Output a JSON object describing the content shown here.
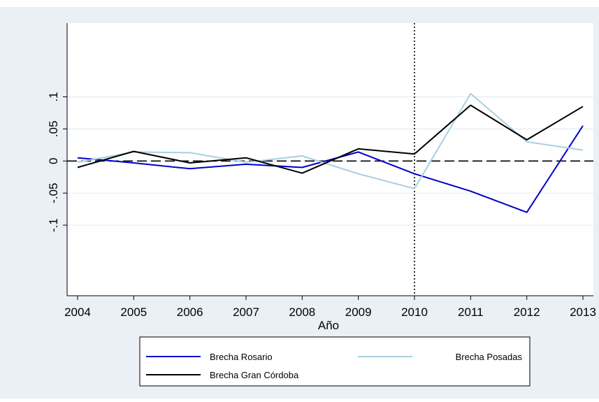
{
  "chart_data": {
    "type": "line",
    "title": "",
    "xlabel": "Año",
    "ylabel": "",
    "x": [
      2004,
      2005,
      2006,
      2007,
      2008,
      2009,
      2010,
      2011,
      2012,
      2013
    ],
    "xlim": [
      2004,
      2013
    ],
    "ylim": [
      -0.21,
      0.215
    ],
    "x_ticks": [
      "2004",
      "2005",
      "2006",
      "2007",
      "2008",
      "2009",
      "2010",
      "2011",
      "2012",
      "2013"
    ],
    "y_ticks": [
      {
        "value": -0.1,
        "label": "-.1"
      },
      {
        "value": -0.05,
        "label": "-.05"
      },
      {
        "value": 0,
        "label": "0"
      },
      {
        "value": 0.05,
        "label": ".05"
      },
      {
        "value": 0.1,
        "label": ".1"
      }
    ],
    "grid": true,
    "reference_lines": [
      {
        "axis": "y",
        "value": 0,
        "style": "dashed"
      },
      {
        "axis": "x",
        "value": 2010,
        "style": "dotted"
      }
    ],
    "legend_position": "bottom",
    "series": [
      {
        "name": "Brecha Rosario",
        "color": "#0000cc",
        "values": [
          0.005,
          -0.003,
          -0.012,
          -0.005,
          -0.01,
          0.014,
          -0.02,
          -0.047,
          -0.08,
          0.055
        ]
      },
      {
        "name": "Brecha Posadas",
        "color": "#a8d0df",
        "values": [
          -0.002,
          0.014,
          0.013,
          -0.002,
          0.008,
          -0.02,
          -0.043,
          0.105,
          0.03,
          0.017
        ]
      },
      {
        "name": "Brecha Gran Córdoba",
        "color": "#000000",
        "values": [
          -0.01,
          0.015,
          -0.003,
          0.005,
          -0.019,
          0.019,
          0.011,
          0.087,
          0.033,
          0.085
        ]
      }
    ]
  }
}
